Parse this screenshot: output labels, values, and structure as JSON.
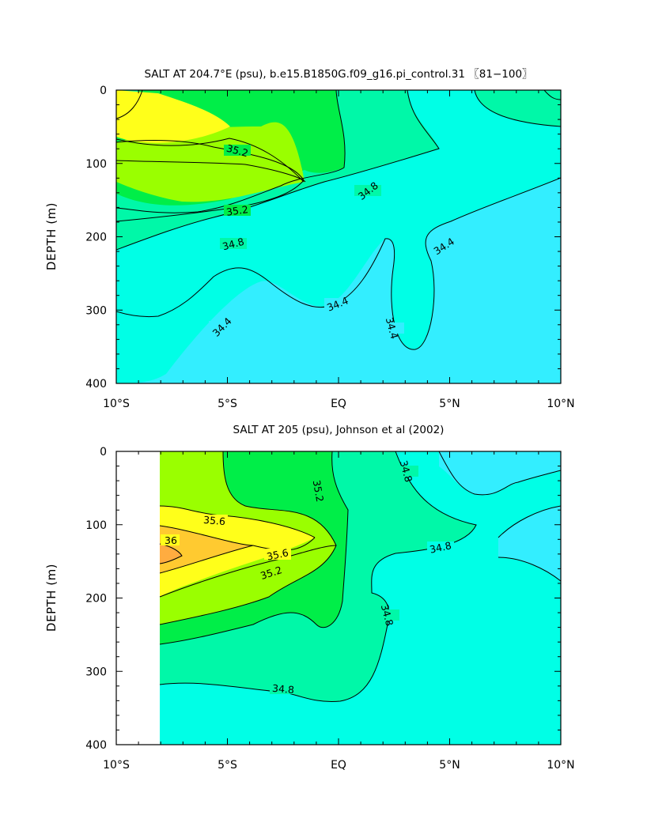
{
  "chart_data": [
    {
      "type": "contour",
      "title": "SALT AT 204.7°E (psu), b.e15.B1850G.f09_g16.pi_control.31 〖81−100〗",
      "xlabel": "",
      "ylabel": "DEPTH (m)",
      "x_ticks": [
        "10°S",
        "5°S",
        "EQ",
        "5°N",
        "10°N"
      ],
      "x_values": [
        -10,
        -5,
        0,
        5,
        10
      ],
      "y_ticks": [
        "0",
        "100",
        "200",
        "300",
        "400"
      ],
      "y_values": [
        0,
        100,
        200,
        300,
        400
      ],
      "xlim": [
        -10,
        10
      ],
      "ylim": [
        400,
        0
      ],
      "contour_labels": [
        {
          "text": "35.2",
          "lon": -6.3,
          "depth": 92
        },
        {
          "text": "35.2",
          "lon": -5.4,
          "depth": 168
        },
        {
          "text": "34.8",
          "lon": 1.4,
          "depth": 148
        },
        {
          "text": "34.8",
          "lon": -4.2,
          "depth": 212
        },
        {
          "text": "34.4",
          "lon": 4.8,
          "depth": 209
        },
        {
          "text": "34.4",
          "lon": 0.4,
          "depth": 295
        },
        {
          "text": "34.4",
          "lon": 2.4,
          "depth": 330
        },
        {
          "text": "34.4",
          "lon": -5.0,
          "depth": 335
        }
      ]
    },
    {
      "type": "contour",
      "title": "SALT AT 205 (psu), Johnson et al (2002)",
      "xlabel": "",
      "ylabel": "DEPTH (m)",
      "x_ticks": [
        "10°S",
        "5°S",
        "EQ",
        "5°N",
        "10°N"
      ],
      "x_values": [
        -10,
        -5,
        0,
        5,
        10
      ],
      "y_ticks": [
        "0",
        "100",
        "200",
        "300",
        "400"
      ],
      "y_values": [
        0,
        100,
        200,
        300,
        400
      ],
      "xlim": [
        -10,
        10
      ],
      "ylim": [
        400,
        0
      ],
      "data_start_lon": -8,
      "contour_labels": [
        {
          "text": "35.6",
          "lon": -5.1,
          "depth": 95
        },
        {
          "text": "36",
          "lon": -7.5,
          "depth": 120
        },
        {
          "text": "35.6",
          "lon": -2.6,
          "depth": 138
        },
        {
          "text": "35.2",
          "lon": -2.9,
          "depth": 163
        },
        {
          "text": "35.2",
          "lon": -1.0,
          "depth": 58
        },
        {
          "text": "34.8",
          "lon": 3.0,
          "depth": 32
        },
        {
          "text": "34.8",
          "lon": 4.4,
          "depth": 130
        },
        {
          "text": "34.8",
          "lon": 2.1,
          "depth": 225
        },
        {
          "text": "34.8",
          "lon": -2.4,
          "depth": 327
        }
      ]
    }
  ],
  "colors": {
    "c34_0": "#33eeff",
    "c34_4": "#00ffe6",
    "c34_8": "#00f8a8",
    "c35_2": "#00ee48",
    "c35_6": "#9aff00",
    "c36_0": "#ffff1a",
    "c36_4": "#ffca30",
    "c36_8": "#ffac40"
  }
}
